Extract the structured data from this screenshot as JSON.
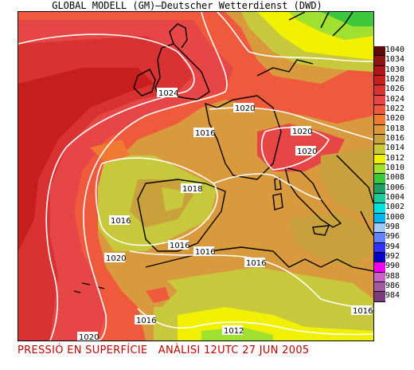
{
  "title": "GLOBAL MODELL (GM)—Deutscher Wetterdienst (DWD)",
  "caption": "PRESSIÓ EN SUPERFÍCIE   ANÀLISI 12UTC 27 JUN 2005",
  "legend": [
    {
      "label": "1040",
      "color": "#5a0a0a"
    },
    {
      "label": "1034",
      "color": "#8c1414"
    },
    {
      "label": "1030",
      "color": "#b01616"
    },
    {
      "label": "1028",
      "color": "#c81e1e"
    },
    {
      "label": "1026",
      "color": "#d83232"
    },
    {
      "label": "1024",
      "color": "#e64646"
    },
    {
      "label": "1022",
      "color": "#f05a3c"
    },
    {
      "label": "1020",
      "color": "#f07a32"
    },
    {
      "label": "1018",
      "color": "#d89a3c"
    },
    {
      "label": "1016",
      "color": "#c8a03c"
    },
    {
      "label": "1014",
      "color": "#c8c83c"
    },
    {
      "label": "1012",
      "color": "#f0f000"
    },
    {
      "label": "1010",
      "color": "#a0e030"
    },
    {
      "label": "1008",
      "color": "#3cc83c"
    },
    {
      "label": "1006",
      "color": "#1ea064"
    },
    {
      "label": "1004",
      "color": "#20c8a0"
    },
    {
      "label": "1002",
      "color": "#00e0e0"
    },
    {
      "label": "1000",
      "color": "#00b4f0"
    },
    {
      "label": "998",
      "color": "#a0c8ff"
    },
    {
      "label": "996",
      "color": "#6482ff"
    },
    {
      "label": "994",
      "color": "#3232ff"
    },
    {
      "label": "992",
      "color": "#0000c8"
    },
    {
      "label": "990",
      "color": "#f000f0"
    },
    {
      "label": "988",
      "color": "#c864c8"
    },
    {
      "label": "986",
      "color": "#a05aa0"
    },
    {
      "label": "984",
      "color": "#7a3c7a"
    }
  ],
  "isobars": [
    {
      "label": "1024"
    },
    {
      "label": "1020"
    },
    {
      "label": "1020"
    },
    {
      "label": "1020"
    },
    {
      "label": "1016"
    },
    {
      "label": "1016"
    },
    {
      "label": "1018"
    },
    {
      "label": "1016"
    },
    {
      "label": "1016"
    },
    {
      "label": "1020"
    },
    {
      "label": "1016"
    },
    {
      "label": "1016"
    },
    {
      "label": "1016"
    },
    {
      "label": "1016"
    },
    {
      "label": "1012"
    },
    {
      "label": "1020"
    }
  ]
}
